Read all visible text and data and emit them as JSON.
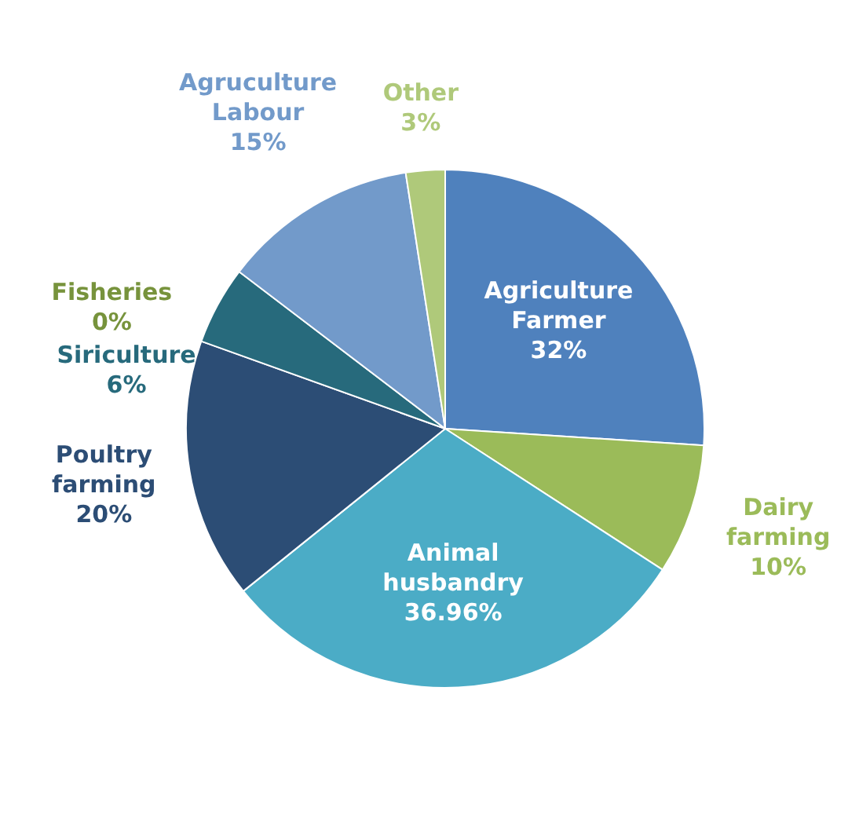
{
  "chart_data": {
    "type": "pie",
    "categories": [
      "Agriculture Farmer",
      "Dairy farming",
      "Animal husbandry",
      "Poultry farming",
      "Fisheries",
      "Siriculture",
      "Agruculture Labour",
      "Other"
    ],
    "values": [
      32,
      10,
      36.96,
      20,
      0,
      6,
      15,
      3
    ],
    "value_labels": [
      "32%",
      "10%",
      "36.96%",
      "20%",
      "0%",
      "6%",
      "15%",
      "3%"
    ],
    "colors": [
      "#4f81bd",
      "#9bbb59",
      "#4bacc6",
      "#2c4d75",
      "#77933c",
      "#276a7c",
      "#729aca",
      "#afc97a"
    ],
    "legend": false
  }
}
